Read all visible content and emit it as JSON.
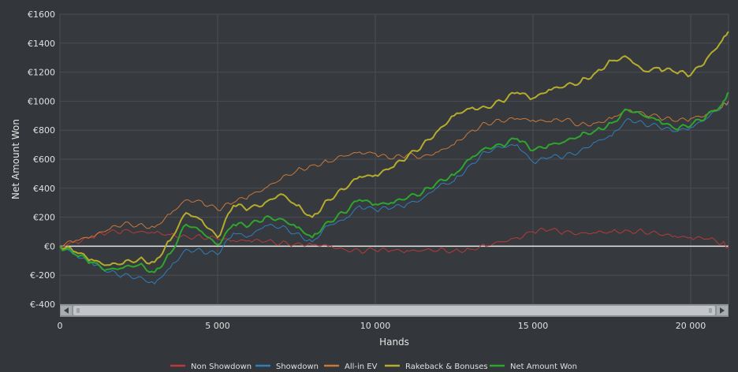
{
  "chart_data": {
    "type": "line",
    "xlabel": "Hands",
    "ylabel": "Net Amount Won",
    "xlim": [
      0,
      21200
    ],
    "ylim": [
      -400,
      1600
    ],
    "x_ticks": [
      0,
      5000,
      10000,
      15000,
      20000
    ],
    "x_tick_labels": [
      "0",
      "5 000",
      "10 000",
      "15 000",
      "20 000"
    ],
    "y_ticks": [
      -400,
      -200,
      0,
      200,
      400,
      600,
      800,
      1000,
      1200,
      1400,
      1600
    ],
    "y_tick_labels": [
      "€-400",
      "€-200",
      "€0",
      "€200",
      "€400",
      "€600",
      "€800",
      "€1000",
      "€1200",
      "€1400",
      "€1600"
    ],
    "grid": true,
    "legend_position": "bottom",
    "x": [
      0,
      500,
      1000,
      1500,
      2000,
      2500,
      3000,
      3500,
      4000,
      4500,
      5000,
      5500,
      6000,
      6500,
      7000,
      7500,
      8000,
      8500,
      9000,
      9500,
      10000,
      10500,
      11000,
      11500,
      12000,
      12500,
      13000,
      13500,
      14000,
      14500,
      15000,
      15500,
      16000,
      16500,
      17000,
      17500,
      18000,
      18500,
      19000,
      19500,
      20000,
      20500,
      21000,
      21200
    ],
    "series": [
      {
        "name": "Non Showdown",
        "color": "#b83a3a",
        "width": 1,
        "values": [
          0,
          30,
          60,
          90,
          110,
          100,
          90,
          80,
          70,
          60,
          50,
          40,
          40,
          30,
          20,
          20,
          10,
          0,
          -20,
          -30,
          -30,
          -30,
          -30,
          -30,
          -30,
          -30,
          -20,
          0,
          30,
          60,
          100,
          110,
          100,
          90,
          90,
          100,
          110,
          100,
          80,
          70,
          60,
          50,
          20,
          0
        ]
      },
      {
        "name": "Showdown",
        "color": "#2f7fbf",
        "width": 1,
        "values": [
          0,
          -60,
          -110,
          -180,
          -200,
          -210,
          -260,
          -150,
          -20,
          -30,
          -60,
          90,
          70,
          140,
          130,
          90,
          30,
          140,
          180,
          280,
          250,
          260,
          290,
          330,
          410,
          450,
          560,
          650,
          680,
          700,
          580,
          610,
          620,
          660,
          720,
          760,
          880,
          850,
          820,
          790,
          820,
          880,
          960,
          1000
        ]
      },
      {
        "name": "All-in EV",
        "color": "#c9783a",
        "width": 1,
        "values": [
          0,
          40,
          70,
          110,
          150,
          150,
          130,
          220,
          320,
          310,
          250,
          300,
          350,
          400,
          460,
          520,
          560,
          580,
          620,
          650,
          640,
          600,
          630,
          620,
          650,
          700,
          790,
          850,
          860,
          880,
          870,
          860,
          870,
          840,
          850,
          880,
          940,
          920,
          890,
          860,
          880,
          910,
          960,
          1000
        ]
      },
      {
        "name": "Rakeback & Bonuses",
        "color": "#b5ac2e",
        "width": 2,
        "values": [
          0,
          -40,
          -90,
          -130,
          -120,
          -90,
          -110,
          40,
          230,
          180,
          60,
          280,
          260,
          300,
          360,
          280,
          200,
          320,
          390,
          480,
          490,
          540,
          610,
          700,
          800,
          900,
          950,
          960,
          1000,
          1060,
          1020,
          1080,
          1100,
          1130,
          1200,
          1280,
          1300,
          1210,
          1230,
          1200,
          1180,
          1290,
          1420,
          1480
        ]
      },
      {
        "name": "Net Amount Won",
        "color": "#2ea52e",
        "width": 2,
        "values": [
          0,
          -60,
          -110,
          -160,
          -150,
          -130,
          -180,
          -50,
          150,
          100,
          10,
          150,
          140,
          200,
          190,
          130,
          60,
          170,
          230,
          320,
          290,
          300,
          330,
          370,
          450,
          490,
          600,
          680,
          700,
          740,
          660,
          700,
          720,
          760,
          800,
          850,
          940,
          900,
          870,
          810,
          830,
          900,
          980,
          1060
        ]
      }
    ]
  }
}
